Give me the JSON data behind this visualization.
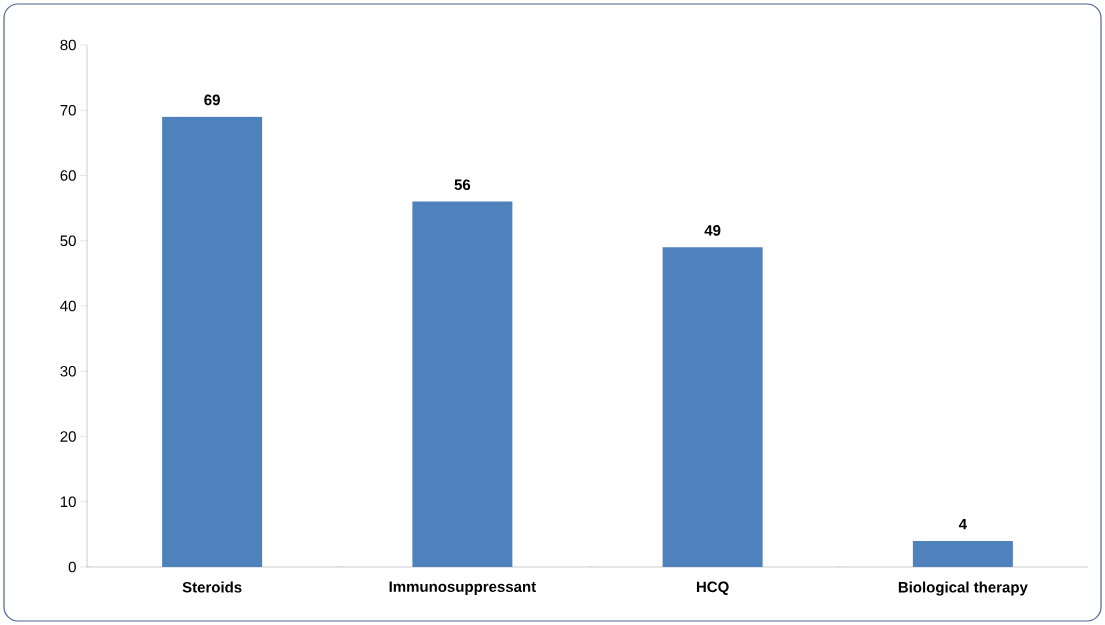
{
  "chart_data": {
    "type": "bar",
    "categories": [
      "Steroids",
      "Immunosuppressant",
      "HCQ",
      "Biological therapy"
    ],
    "values": [
      69,
      56,
      49,
      4
    ],
    "color": "#4f81bd",
    "ylim": [
      0,
      80
    ],
    "yticks": [
      0,
      10,
      20,
      30,
      40,
      50,
      60,
      70,
      80
    ],
    "data_labels": true,
    "grid": false
  }
}
